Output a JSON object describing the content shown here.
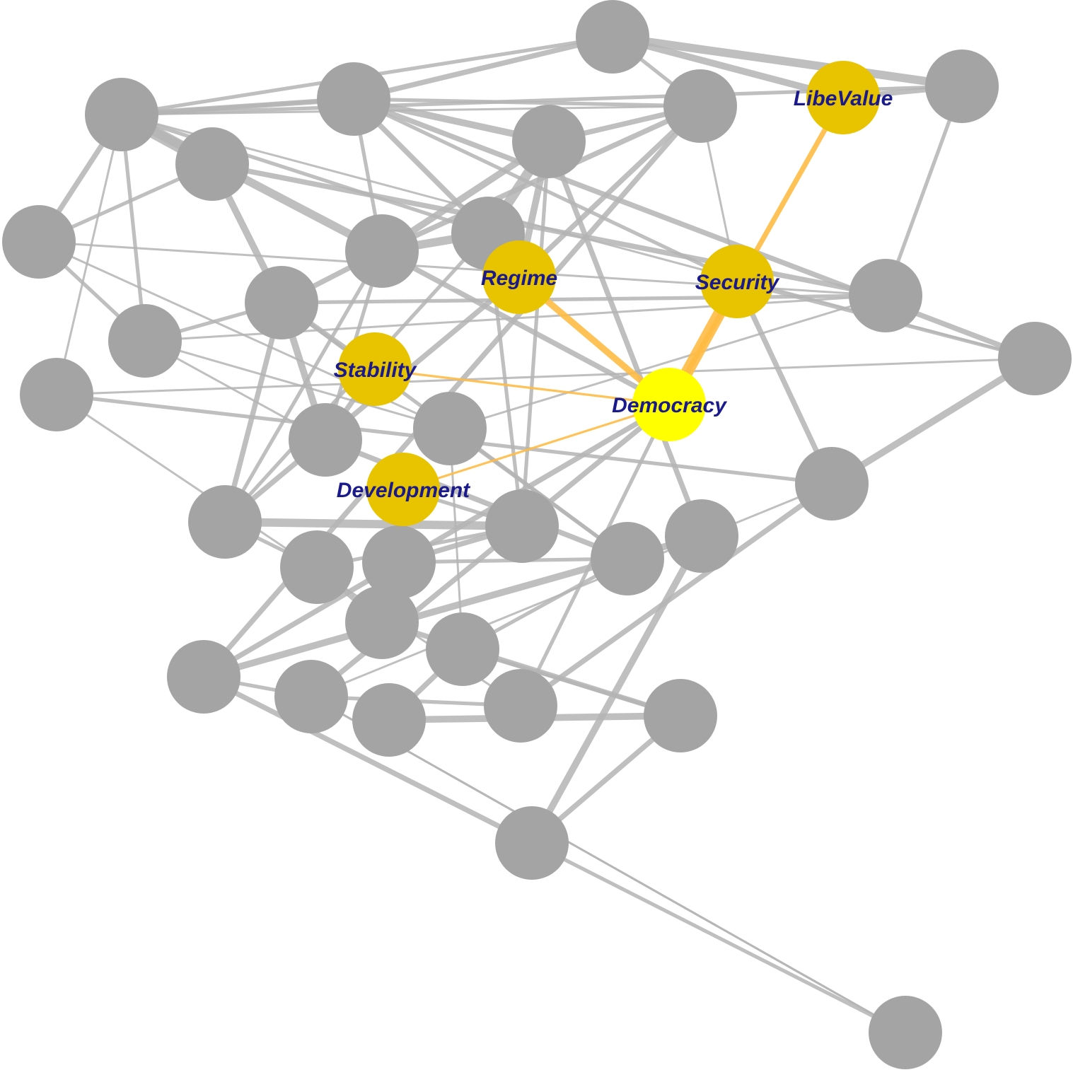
{
  "colors": {
    "background": "#ffffff",
    "node_default": "#a4a4a4",
    "node_highlight": "#e8c400",
    "node_focus": "#ffff00",
    "edge_default": "#b4b4b4",
    "edge_highlight": "#ffbb44",
    "label_text": "#1a1a8c"
  },
  "nodes": [
    {
      "id": "n1",
      "label": "",
      "kind": "default"
    },
    {
      "id": "n2",
      "label": "",
      "kind": "default"
    },
    {
      "id": "n3",
      "label": "",
      "kind": "default"
    },
    {
      "id": "n4",
      "label": "",
      "kind": "default"
    },
    {
      "id": "n5",
      "label": "",
      "kind": "default"
    },
    {
      "id": "n6",
      "label": "",
      "kind": "default"
    },
    {
      "id": "n7",
      "label": "",
      "kind": "default"
    },
    {
      "id": "n8",
      "label": "",
      "kind": "default"
    },
    {
      "id": "n9",
      "label": "",
      "kind": "default"
    },
    {
      "id": "n10",
      "label": "",
      "kind": "default"
    },
    {
      "id": "n11",
      "label": "",
      "kind": "default"
    },
    {
      "id": "n12",
      "label": "",
      "kind": "default"
    },
    {
      "id": "n13",
      "label": "",
      "kind": "default"
    },
    {
      "id": "n14",
      "label": "",
      "kind": "default"
    },
    {
      "id": "n15",
      "label": "",
      "kind": "default"
    },
    {
      "id": "n16",
      "label": "",
      "kind": "default"
    },
    {
      "id": "n17",
      "label": "",
      "kind": "default"
    },
    {
      "id": "n18",
      "label": "",
      "kind": "default"
    },
    {
      "id": "n19",
      "label": "",
      "kind": "default"
    },
    {
      "id": "n20",
      "label": "",
      "kind": "default"
    },
    {
      "id": "n21",
      "label": "",
      "kind": "default"
    },
    {
      "id": "n22",
      "label": "",
      "kind": "default"
    },
    {
      "id": "n23",
      "label": "",
      "kind": "default"
    },
    {
      "id": "n24",
      "label": "",
      "kind": "default"
    },
    {
      "id": "n25",
      "label": "",
      "kind": "default"
    },
    {
      "id": "n26",
      "label": "",
      "kind": "default"
    },
    {
      "id": "n27",
      "label": "",
      "kind": "default"
    },
    {
      "id": "n28",
      "label": "",
      "kind": "default"
    },
    {
      "id": "n29",
      "label": "",
      "kind": "default"
    },
    {
      "id": "n30",
      "label": "",
      "kind": "default"
    },
    {
      "id": "n31",
      "label": "",
      "kind": "default"
    },
    {
      "id": "n32",
      "label": "",
      "kind": "default"
    },
    {
      "id": "n33",
      "label": "",
      "kind": "default"
    },
    {
      "id": "libevalue",
      "label": "LibeValue",
      "kind": "highlight"
    },
    {
      "id": "regime",
      "label": "Regime",
      "kind": "highlight"
    },
    {
      "id": "security",
      "label": "Security",
      "kind": "highlight"
    },
    {
      "id": "stability",
      "label": "Stability",
      "kind": "highlight"
    },
    {
      "id": "development",
      "label": "Development",
      "kind": "highlight"
    },
    {
      "id": "democracy",
      "label": "Democracy",
      "kind": "focus"
    }
  ],
  "edges": [
    {
      "source": "n1",
      "target": "n2",
      "weight": 5
    },
    {
      "source": "n1",
      "target": "libevalue",
      "weight": 4
    },
    {
      "source": "n1",
      "target": "n4",
      "weight": 3
    },
    {
      "source": "n1",
      "target": "n3",
      "weight": 2
    },
    {
      "source": "n1",
      "target": "n5",
      "weight": 2
    },
    {
      "source": "n2",
      "target": "libevalue",
      "weight": 3
    },
    {
      "source": "n2",
      "target": "n3",
      "weight": 2
    },
    {
      "source": "n2",
      "target": "n11",
      "weight": 2
    },
    {
      "source": "n3",
      "target": "n6",
      "weight": 8
    },
    {
      "source": "n3",
      "target": "n5",
      "weight": 1
    },
    {
      "source": "n3",
      "target": "n7",
      "weight": 3
    },
    {
      "source": "n3",
      "target": "n8",
      "weight": 5
    },
    {
      "source": "n3",
      "target": "n4",
      "weight": 2
    },
    {
      "source": "n3",
      "target": "n9",
      "weight": 2
    },
    {
      "source": "n3",
      "target": "n13",
      "weight": 2
    },
    {
      "source": "n3",
      "target": "n15",
      "weight": 1
    },
    {
      "source": "n3",
      "target": "n14",
      "weight": 1
    },
    {
      "source": "n4",
      "target": "n3",
      "weight": 3
    },
    {
      "source": "n4",
      "target": "n14",
      "weight": 3
    },
    {
      "source": "n4",
      "target": "n8",
      "weight": 2
    },
    {
      "source": "n4",
      "target": "n9",
      "weight": 3
    },
    {
      "source": "n4",
      "target": "security",
      "weight": 2
    },
    {
      "source": "n4",
      "target": "n10",
      "weight": 4
    },
    {
      "source": "n4",
      "target": "n5",
      "weight": 2
    },
    {
      "source": "n5",
      "target": "n8",
      "weight": 3
    },
    {
      "source": "n5",
      "target": "security",
      "weight": 1
    },
    {
      "source": "n5",
      "target": "n10",
      "weight": 3
    },
    {
      "source": "n5",
      "target": "regime",
      "weight": 3
    },
    {
      "source": "n5",
      "target": "n27",
      "weight": 3
    },
    {
      "source": "n6",
      "target": "n12",
      "weight": 4
    },
    {
      "source": "n6",
      "target": "n7",
      "weight": 2
    },
    {
      "source": "n6",
      "target": "n11",
      "weight": 3
    },
    {
      "source": "n7",
      "target": "n11",
      "weight": 1
    },
    {
      "source": "n7",
      "target": "n13",
      "weight": 2
    },
    {
      "source": "n7",
      "target": "n17",
      "weight": 1
    },
    {
      "source": "n8",
      "target": "n9",
      "weight": 5
    },
    {
      "source": "n8",
      "target": "n10",
      "weight": 4
    },
    {
      "source": "n8",
      "target": "n12",
      "weight": 3
    },
    {
      "source": "n8",
      "target": "n16",
      "weight": 2
    },
    {
      "source": "n8",
      "target": "n19",
      "weight": 2
    },
    {
      "source": "n9",
      "target": "n10",
      "weight": 6
    },
    {
      "source": "n9",
      "target": "regime",
      "weight": 3
    },
    {
      "source": "n9",
      "target": "n19",
      "weight": 2
    },
    {
      "source": "n9",
      "target": "n20",
      "weight": 2
    },
    {
      "source": "n10",
      "target": "regime",
      "weight": 4
    },
    {
      "source": "n10",
      "target": "n20",
      "weight": 2
    },
    {
      "source": "n10",
      "target": "n21",
      "weight": 3
    },
    {
      "source": "n11",
      "target": "n12",
      "weight": 2
    },
    {
      "source": "n11",
      "target": "n17",
      "weight": 1
    },
    {
      "source": "n11",
      "target": "n13",
      "weight": 1
    },
    {
      "source": "n12",
      "target": "stability",
      "weight": 3
    },
    {
      "source": "n12",
      "target": "n13",
      "weight": 2
    },
    {
      "source": "n12",
      "target": "n16",
      "weight": 4
    },
    {
      "source": "n12",
      "target": "n19",
      "weight": 3
    },
    {
      "source": "n12",
      "target": "n22",
      "weight": 2
    },
    {
      "source": "n13",
      "target": "n17",
      "weight": 1
    },
    {
      "source": "n13",
      "target": "n16",
      "weight": 1
    },
    {
      "source": "n14",
      "target": "security",
      "weight": 2
    },
    {
      "source": "n14",
      "target": "n15",
      "weight": 1
    },
    {
      "source": "n14",
      "target": "n18",
      "weight": 4
    },
    {
      "source": "n15",
      "target": "n18",
      "weight": 2
    },
    {
      "source": "n15",
      "target": "n29",
      "weight": 1
    },
    {
      "source": "n16",
      "target": "stability",
      "weight": 3
    },
    {
      "source": "n16",
      "target": "n22",
      "weight": 3
    },
    {
      "source": "n17",
      "target": "n22",
      "weight": 2
    },
    {
      "source": "n17",
      "target": "n26",
      "weight": 1
    },
    {
      "source": "n18",
      "target": "security",
      "weight": 3
    },
    {
      "source": "n18",
      "target": "n29",
      "weight": 3
    },
    {
      "source": "n18",
      "target": "n28",
      "weight": 1
    },
    {
      "source": "n19",
      "target": "regime",
      "weight": 3
    },
    {
      "source": "n19",
      "target": "n20",
      "weight": 5
    },
    {
      "source": "n19",
      "target": "n23",
      "weight": 2
    },
    {
      "source": "n20",
      "target": "n23",
      "weight": 2
    },
    {
      "source": "n20",
      "target": "n24",
      "weight": 3
    },
    {
      "source": "n21",
      "target": "n27",
      "weight": 4
    },
    {
      "source": "n21",
      "target": "n32",
      "weight": 4
    },
    {
      "source": "n22",
      "target": "n24",
      "weight": 2
    },
    {
      "source": "n22",
      "target": "n26",
      "weight": 2
    },
    {
      "source": "n23",
      "target": "n25",
      "weight": 3
    },
    {
      "source": "n24",
      "target": "n25",
      "weight": 3
    },
    {
      "source": "n25",
      "target": "n31",
      "weight": 3
    },
    {
      "source": "n26",
      "target": "n30",
      "weight": 3
    },
    {
      "source": "n26",
      "target": "n31",
      "weight": 2
    },
    {
      "source": "n27",
      "target": "n28",
      "weight": 2
    },
    {
      "source": "n27",
      "target": "n32",
      "weight": 3
    },
    {
      "source": "n28",
      "target": "n29",
      "weight": 2
    },
    {
      "source": "n28",
      "target": "n33",
      "weight": 1
    },
    {
      "source": "n28",
      "target": "democracy",
      "weight": 3
    },
    {
      "source": "n30",
      "target": "n31",
      "weight": 4
    },
    {
      "source": "n31",
      "target": "n32",
      "weight": 3
    },
    {
      "source": "n32",
      "target": "n33",
      "weight": 2
    },
    {
      "source": "n33",
      "target": "n28",
      "weight": 1
    },
    {
      "source": "n33",
      "target": "n34",
      "weight": 1
    },
    {
      "source": "n29",
      "target": "democracy",
      "weight": 2
    },
    {
      "source": "n25",
      "target": "development",
      "weight": 3
    },
    {
      "source": "n24",
      "target": "development",
      "weight": 3
    },
    {
      "source": "n20",
      "target": "development",
      "weight": 2
    },
    {
      "source": "n27",
      "target": "democracy",
      "weight": 3
    },
    {
      "source": "n8",
      "target": "democracy",
      "weight": 3
    },
    {
      "source": "regime",
      "target": "democracy",
      "weight": 4,
      "highlight": true
    },
    {
      "source": "security",
      "target": "democracy",
      "weight": 8,
      "highlight": true
    },
    {
      "source": "libevalue",
      "target": "democracy",
      "weight": 3,
      "highlight": true
    },
    {
      "source": "stability",
      "target": "democracy",
      "weight": 1,
      "highlight": true
    },
    {
      "source": "development",
      "target": "democracy",
      "weight": 1,
      "highlight": true
    }
  ]
}
